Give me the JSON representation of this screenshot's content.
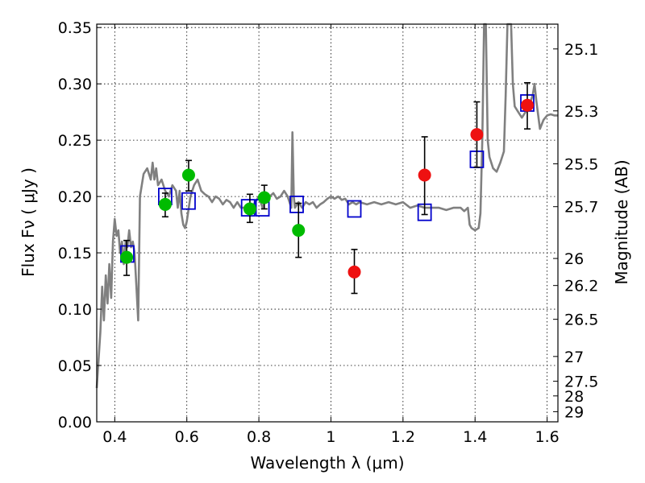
{
  "chart_data": {
    "type": "scatter",
    "xlabel": "Wavelength  λ (μm)",
    "ylabel": "Flux  Fν  ( μJy )",
    "ylabel_right": "Magnitude (AB)",
    "xlim": [
      0.35,
      1.63
    ],
    "ylim": [
      0.0,
      0.353
    ],
    "x_ticks": [
      0.4,
      0.6,
      0.8,
      1.0,
      1.2,
      1.4,
      1.6
    ],
    "x_tick_labels": [
      "0.4",
      "0.6",
      "0.8",
      "1",
      "1.2",
      "1.4",
      "1.6"
    ],
    "y_ticks": [
      0.0,
      0.05,
      0.1,
      0.15,
      0.2,
      0.25,
      0.3,
      0.35
    ],
    "y_tick_labels": [
      "0.00",
      "0.05",
      "0.10",
      "0.15",
      "0.20",
      "0.25",
      "0.30",
      "0.35"
    ],
    "right_ticks": [
      {
        "label": "25.1",
        "flux": 0.331
      },
      {
        "label": "25.3",
        "flux": 0.276
      },
      {
        "label": "25.5",
        "flux": 0.229
      },
      {
        "label": "25.7",
        "flux": 0.191
      },
      {
        "label": "26",
        "flux": 0.145
      },
      {
        "label": "26.2",
        "flux": 0.121
      },
      {
        "label": "26.5",
        "flux": 0.091
      },
      {
        "label": "27",
        "flux": 0.058
      },
      {
        "label": "27.5",
        "flux": 0.036
      },
      {
        "label": "28",
        "flux": 0.023
      },
      {
        "label": "29",
        "flux": 0.009
      }
    ],
    "grid": true,
    "colors": {
      "spectrum": "#808080",
      "green_points": "#00bb00",
      "red_points": "#ee1111",
      "model_boxes": "#0000cc",
      "error_bars": "#000000"
    },
    "series": [
      {
        "type": "line",
        "points": [
          [
            0.35,
            0.03
          ],
          [
            0.36,
            0.08
          ],
          [
            0.365,
            0.12
          ],
          [
            0.37,
            0.09
          ],
          [
            0.375,
            0.13
          ],
          [
            0.38,
            0.105
          ],
          [
            0.385,
            0.14
          ],
          [
            0.39,
            0.11
          ],
          [
            0.395,
            0.16
          ],
          [
            0.4,
            0.18
          ],
          [
            0.405,
            0.165
          ],
          [
            0.41,
            0.17
          ],
          [
            0.415,
            0.15
          ],
          [
            0.42,
            0.16
          ],
          [
            0.425,
            0.14
          ],
          [
            0.43,
            0.16
          ],
          [
            0.435,
            0.155
          ],
          [
            0.44,
            0.17
          ],
          [
            0.445,
            0.155
          ],
          [
            0.45,
            0.16
          ],
          [
            0.455,
            0.15
          ],
          [
            0.46,
            0.12
          ],
          [
            0.465,
            0.09
          ],
          [
            0.47,
            0.2
          ],
          [
            0.48,
            0.22
          ],
          [
            0.49,
            0.225
          ],
          [
            0.5,
            0.215
          ],
          [
            0.505,
            0.23
          ],
          [
            0.51,
            0.215
          ],
          [
            0.515,
            0.225
          ],
          [
            0.52,
            0.21
          ],
          [
            0.53,
            0.215
          ],
          [
            0.54,
            0.205
          ],
          [
            0.55,
            0.2
          ],
          [
            0.56,
            0.21
          ],
          [
            0.57,
            0.205
          ],
          [
            0.575,
            0.19
          ],
          [
            0.58,
            0.205
          ],
          [
            0.585,
            0.185
          ],
          [
            0.59,
            0.175
          ],
          [
            0.595,
            0.172
          ],
          [
            0.6,
            0.178
          ],
          [
            0.61,
            0.2
          ],
          [
            0.62,
            0.21
          ],
          [
            0.63,
            0.215
          ],
          [
            0.64,
            0.205
          ],
          [
            0.65,
            0.202
          ],
          [
            0.66,
            0.2
          ],
          [
            0.67,
            0.195
          ],
          [
            0.68,
            0.2
          ],
          [
            0.69,
            0.198
          ],
          [
            0.7,
            0.193
          ],
          [
            0.71,
            0.197
          ],
          [
            0.72,
            0.195
          ],
          [
            0.73,
            0.19
          ],
          [
            0.74,
            0.195
          ],
          [
            0.75,
            0.19
          ],
          [
            0.76,
            0.19
          ],
          [
            0.77,
            0.188
          ],
          [
            0.78,
            0.19
          ],
          [
            0.79,
            0.195
          ],
          [
            0.8,
            0.2
          ],
          [
            0.81,
            0.19
          ],
          [
            0.82,
            0.198
          ],
          [
            0.83,
            0.2
          ],
          [
            0.84,
            0.203
          ],
          [
            0.85,
            0.198
          ],
          [
            0.86,
            0.2
          ],
          [
            0.87,
            0.205
          ],
          [
            0.88,
            0.2
          ],
          [
            0.885,
            0.195
          ],
          [
            0.89,
            0.19
          ],
          [
            0.893,
            0.257
          ],
          [
            0.897,
            0.2
          ],
          [
            0.9,
            0.19
          ],
          [
            0.91,
            0.195
          ],
          [
            0.92,
            0.19
          ],
          [
            0.93,
            0.195
          ],
          [
            0.94,
            0.193
          ],
          [
            0.95,
            0.195
          ],
          [
            0.96,
            0.19
          ],
          [
            0.97,
            0.193
          ],
          [
            0.98,
            0.195
          ],
          [
            0.99,
            0.198
          ],
          [
            1.0,
            0.2
          ],
          [
            1.01,
            0.198
          ],
          [
            1.02,
            0.2
          ],
          [
            1.03,
            0.197
          ],
          [
            1.04,
            0.198
          ],
          [
            1.05,
            0.193
          ],
          [
            1.06,
            0.195
          ],
          [
            1.07,
            0.193
          ],
          [
            1.08,
            0.195
          ],
          [
            1.1,
            0.193
          ],
          [
            1.12,
            0.195
          ],
          [
            1.14,
            0.193
          ],
          [
            1.16,
            0.195
          ],
          [
            1.18,
            0.193
          ],
          [
            1.2,
            0.195
          ],
          [
            1.22,
            0.19
          ],
          [
            1.24,
            0.192
          ],
          [
            1.26,
            0.19
          ],
          [
            1.28,
            0.19
          ],
          [
            1.3,
            0.19
          ],
          [
            1.32,
            0.188
          ],
          [
            1.34,
            0.19
          ],
          [
            1.36,
            0.19
          ],
          [
            1.37,
            0.187
          ],
          [
            1.38,
            0.19
          ],
          [
            1.385,
            0.175
          ],
          [
            1.39,
            0.172
          ],
          [
            1.4,
            0.17
          ],
          [
            1.41,
            0.172
          ],
          [
            1.415,
            0.185
          ],
          [
            1.42,
            0.25
          ],
          [
            1.425,
            0.353
          ],
          [
            1.43,
            0.353
          ],
          [
            1.435,
            0.25
          ],
          [
            1.44,
            0.235
          ],
          [
            1.45,
            0.225
          ],
          [
            1.46,
            0.222
          ],
          [
            1.47,
            0.23
          ],
          [
            1.48,
            0.24
          ],
          [
            1.485,
            0.29
          ],
          [
            1.49,
            0.353
          ],
          [
            1.5,
            0.353
          ],
          [
            1.505,
            0.3
          ],
          [
            1.51,
            0.28
          ],
          [
            1.52,
            0.275
          ],
          [
            1.53,
            0.27
          ],
          [
            1.54,
            0.275
          ],
          [
            1.55,
            0.28
          ],
          [
            1.56,
            0.29
          ],
          [
            1.565,
            0.3
          ],
          [
            1.57,
            0.285
          ],
          [
            1.58,
            0.26
          ],
          [
            1.59,
            0.268
          ],
          [
            1.6,
            0.272
          ],
          [
            1.61,
            0.273
          ],
          [
            1.62,
            0.272
          ],
          [
            1.63,
            0.272
          ]
        ]
      },
      {
        "type": "boxes",
        "points": [
          [
            0.435,
            0.149
          ],
          [
            0.54,
            0.2
          ],
          [
            0.605,
            0.196
          ],
          [
            0.77,
            0.19
          ],
          [
            0.81,
            0.19
          ],
          [
            0.905,
            0.193
          ],
          [
            1.065,
            0.189
          ],
          [
            1.26,
            0.186
          ],
          [
            1.405,
            0.233
          ],
          [
            1.545,
            0.283
          ]
        ]
      },
      {
        "type": "points",
        "color": "green",
        "points": [
          {
            "x": 0.433,
            "y": 0.146,
            "lo": 0.13,
            "hi": 0.161
          },
          {
            "x": 0.54,
            "y": 0.193,
            "lo": 0.182,
            "hi": 0.203
          },
          {
            "x": 0.605,
            "y": 0.219,
            "lo": 0.205,
            "hi": 0.232
          },
          {
            "x": 0.775,
            "y": 0.189,
            "lo": 0.177,
            "hi": 0.202
          },
          {
            "x": 0.815,
            "y": 0.199,
            "lo": 0.189,
            "hi": 0.21
          },
          {
            "x": 0.91,
            "y": 0.17,
            "lo": 0.146,
            "hi": 0.194
          }
        ]
      },
      {
        "type": "points",
        "color": "red",
        "points": [
          {
            "x": 1.065,
            "y": 0.133,
            "lo": 0.114,
            "hi": 0.153
          },
          {
            "x": 1.26,
            "y": 0.219,
            "lo": 0.184,
            "hi": 0.253
          },
          {
            "x": 1.405,
            "y": 0.255,
            "lo": 0.226,
            "hi": 0.284
          },
          {
            "x": 1.545,
            "y": 0.281,
            "lo": 0.26,
            "hi": 0.301
          }
        ]
      }
    ]
  }
}
